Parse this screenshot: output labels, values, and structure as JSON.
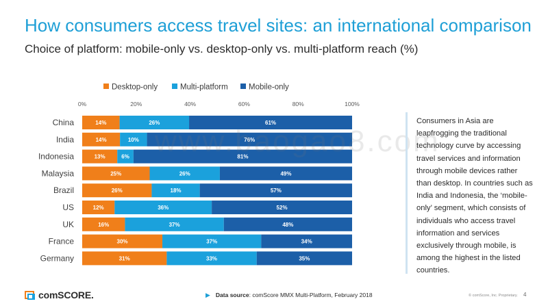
{
  "header": {
    "title": "How consumers access travel sites: an international comparison",
    "subtitle": "Choice of platform: mobile-only vs. desktop-only vs. multi-platform reach (%)"
  },
  "side_note": {
    "text": "Consumers in Asia are leapfrogging the traditional technology curve by accessing travel services and information through mobile devices rather than desktop. In countries such as India and Indonesia, the ‘mobile-only’ segment, which consists of individuals who access travel information and services exclusively through mobile, is among the highest in the listed countries."
  },
  "footer": {
    "logo_text": "comSCORE.",
    "source_label": "Data source",
    "source_text": ": comScore MMX Multi-Platform, February 2018",
    "copyright": "© comScore, Inc. Proprietary.",
    "page_number": "4"
  },
  "watermark": "www.baogao8.com",
  "chart_data": {
    "type": "bar",
    "stacked": true,
    "orientation": "horizontal",
    "categories": [
      "China",
      "India",
      "Indonesia",
      "Malaysia",
      "Brazil",
      "US",
      "UK",
      "France",
      "Germany"
    ],
    "series": [
      {
        "name": "Desktop-only",
        "color": "#f07f1a",
        "values": [
          14,
          14,
          13,
          25,
          26,
          12,
          16,
          30,
          31
        ]
      },
      {
        "name": "Multi-platform",
        "color": "#1ba1dc",
        "values": [
          26,
          10,
          6,
          26,
          18,
          36,
          37,
          37,
          33
        ]
      },
      {
        "name": "Mobile-only",
        "color": "#1c5fa8",
        "values": [
          61,
          76,
          81,
          49,
          57,
          52,
          48,
          34,
          35
        ]
      }
    ],
    "xlim": [
      0,
      100
    ],
    "xticks": [
      "0%",
      "20%",
      "40%",
      "60%",
      "80%",
      "100%"
    ],
    "legend_position": "top",
    "grid": false
  }
}
